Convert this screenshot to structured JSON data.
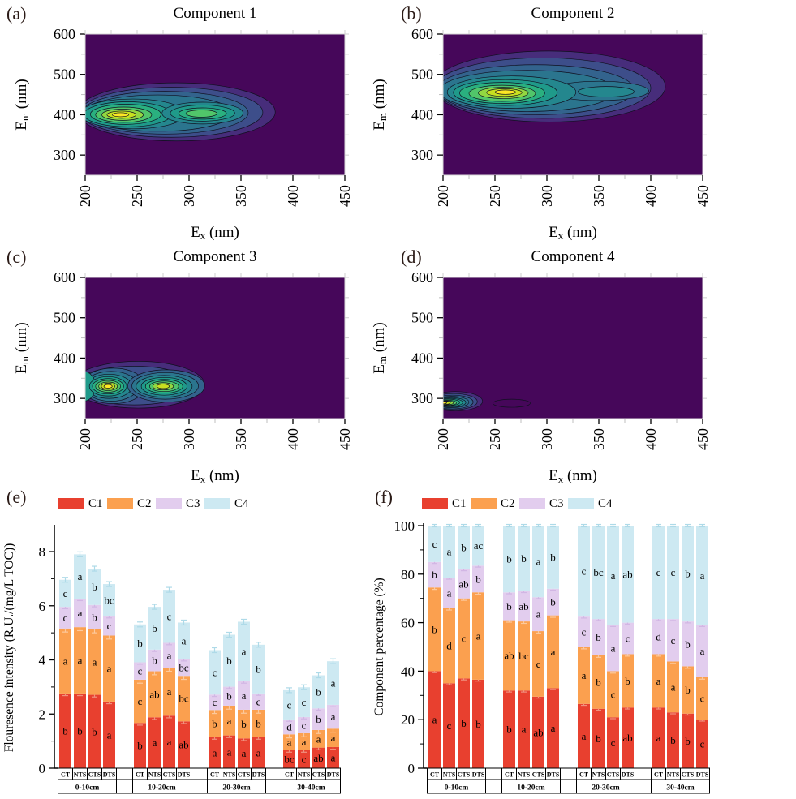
{
  "panels": {
    "a": {
      "tag": "(a)"
    },
    "b": {
      "tag": "(b)"
    },
    "c": {
      "tag": "(c)"
    },
    "d": {
      "tag": "(d)"
    },
    "e": {
      "tag": "(e)"
    },
    "f": {
      "tag": "(f)"
    }
  },
  "colors": {
    "c1": "#e8402f",
    "c2": "#fba04f",
    "c3": "#e2cdee",
    "c4": "#cde9f2",
    "panel_tag": "#2b1b17",
    "error_bars": [
      "#f0917f",
      "#fcc99c",
      "#d2b6e4",
      "#aedae8"
    ],
    "viridis": [
      "#46075a",
      "#472d7b",
      "#3d4e8a",
      "#33638d",
      "#2b758e",
      "#24878e",
      "#1f9a8a",
      "#2ab07f",
      "#51c56a",
      "#92d741",
      "#c8e020",
      "#fde725"
    ]
  },
  "chart_data": [
    {
      "type": "heatmap",
      "panel": "a",
      "title": "Component 1",
      "xlabel": [
        "E",
        "x",
        " (nm)"
      ],
      "ylabel": [
        "E",
        "m",
        " (nm)"
      ],
      "x_range": [
        200,
        450
      ],
      "y_range": [
        250,
        600
      ],
      "x_ticks": [
        200,
        250,
        300,
        350,
        400,
        450
      ],
      "y_ticks": [
        300,
        400,
        500,
        600
      ],
      "peaks": [
        {
          "ex": 235,
          "em": 400
        },
        {
          "ex": 312,
          "em": 403
        }
      ],
      "contours": [
        [
          288,
          407,
          95,
          72,
          1
        ],
        [
          283,
          406,
          88,
          62,
          2
        ],
        [
          277,
          405,
          80,
          53,
          3
        ],
        [
          270,
          404,
          72,
          45,
          4
        ],
        [
          246,
          402,
          51,
          37,
          5
        ],
        [
          241,
          401,
          42,
          31,
          6
        ],
        [
          239,
          401,
          34,
          25,
          7
        ],
        [
          237,
          400,
          27,
          19,
          8
        ],
        [
          236,
          400,
          20,
          14,
          9
        ],
        [
          235,
          400,
          14,
          9,
          10
        ],
        [
          234,
          400,
          8,
          5,
          11
        ],
        [
          313,
          404,
          39,
          27,
          5
        ],
        [
          313,
          404,
          31,
          20,
          6
        ],
        [
          313,
          403,
          23,
          14,
          7
        ],
        [
          312,
          403,
          15,
          9,
          8
        ]
      ]
    },
    {
      "type": "heatmap",
      "panel": "b",
      "title": "Component 2",
      "xlabel": [
        "E",
        "x",
        " (nm)"
      ],
      "ylabel": [
        "E",
        "m",
        " (nm)"
      ],
      "x_range": [
        200,
        450
      ],
      "y_range": [
        250,
        600
      ],
      "x_ticks": [
        200,
        250,
        300,
        350,
        400,
        450
      ],
      "y_ticks": [
        300,
        400,
        500,
        600
      ],
      "peaks": [
        {
          "ex": 258,
          "em": 455
        },
        {
          "ex": 360,
          "em": 458
        }
      ],
      "contours": [
        [
          302,
          470,
          112,
          88,
          1
        ],
        [
          296,
          466,
          104,
          75,
          2
        ],
        [
          289,
          462,
          95,
          62,
          3
        ],
        [
          281,
          459,
          85,
          51,
          4
        ],
        [
          350,
          459,
          48,
          24,
          4
        ],
        [
          266,
          456,
          62,
          40,
          5
        ],
        [
          260,
          455,
          50,
          32,
          6
        ],
        [
          257,
          454,
          41,
          26,
          7
        ],
        [
          257,
          453,
          32,
          20,
          8
        ],
        [
          258,
          454,
          24,
          14,
          9
        ],
        [
          259,
          455,
          17,
          9.5,
          10
        ],
        [
          260,
          456,
          10,
          5.5,
          11
        ],
        [
          357,
          457,
          27,
          13,
          5
        ]
      ]
    },
    {
      "type": "heatmap",
      "panel": "c",
      "title": "Component 3",
      "xlabel": [
        "E",
        "x",
        " (nm)"
      ],
      "ylabel": [
        "E",
        "m",
        " (nm)"
      ],
      "x_range": [
        200,
        450
      ],
      "y_range": [
        250,
        600
      ],
      "x_ticks": [
        200,
        250,
        300,
        350,
        400,
        450
      ],
      "y_ticks": [
        300,
        400,
        500,
        600
      ],
      "peaks": [
        {
          "ex": 222,
          "em": 330
        },
        {
          "ex": 276,
          "em": 330
        }
      ],
      "contours": [
        [
          251,
          334,
          64,
          58,
          1
        ],
        [
          247,
          332,
          57,
          48,
          2
        ],
        [
          227,
          331,
          31,
          44,
          3
        ],
        [
          225,
          330,
          26,
          37,
          4
        ],
        [
          223,
          330,
          22,
          30,
          5
        ],
        [
          198,
          330,
          12,
          37,
          6
        ],
        [
          222,
          330,
          18,
          24,
          6
        ],
        [
          222,
          330,
          15,
          19,
          7
        ],
        [
          222,
          330,
          12,
          14.5,
          8
        ],
        [
          222,
          330,
          9,
          10.5,
          9
        ],
        [
          222,
          330,
          6.5,
          7.5,
          10
        ],
        [
          222,
          330,
          4,
          4.5,
          11
        ],
        [
          278,
          331,
          37,
          40,
          3
        ],
        [
          277,
          331,
          32,
          33,
          4
        ],
        [
          276,
          330,
          27,
          27,
          5
        ],
        [
          276,
          330,
          22,
          22,
          6
        ],
        [
          276,
          330,
          18,
          17,
          7
        ],
        [
          276,
          330,
          14,
          13,
          8
        ],
        [
          275,
          330,
          10,
          9,
          9
        ],
        [
          275,
          330,
          6,
          5.5,
          10
        ]
      ]
    },
    {
      "type": "heatmap",
      "panel": "d",
      "title": "Component 4",
      "xlabel": [
        "E",
        "x",
        " (nm)"
      ],
      "ylabel": [
        "E",
        "m",
        " (nm)"
      ],
      "x_range": [
        200,
        450
      ],
      "y_range": [
        250,
        600
      ],
      "x_ticks": [
        200,
        250,
        300,
        350,
        400,
        450
      ],
      "y_ticks": [
        300,
        400,
        500,
        600
      ],
      "peaks": [
        {
          "ex": 205,
          "em": 290
        },
        {
          "ex": 265,
          "em": 288
        }
      ],
      "contours": [
        [
          212,
          293,
          26,
          24,
          1
        ],
        [
          210,
          292,
          23,
          20,
          2
        ],
        [
          209,
          291,
          20,
          17,
          3
        ],
        [
          208,
          291,
          17,
          14,
          4
        ],
        [
          207,
          290,
          15,
          12,
          5
        ],
        [
          206,
          290,
          13,
          10,
          6
        ],
        [
          205,
          290,
          11,
          8,
          7
        ],
        [
          204,
          289,
          9,
          6.5,
          8
        ],
        [
          203,
          289,
          7,
          5,
          9
        ],
        [
          202,
          289,
          5,
          4,
          10
        ],
        [
          200,
          289,
          3.5,
          2.5,
          11
        ],
        [
          266,
          288,
          18,
          10,
          0
        ]
      ]
    },
    {
      "type": "bar",
      "panel": "e",
      "stacked": true,
      "ylabel": "Flouresence intensity (R.U./(mg/L TOC))",
      "ylim": [
        0,
        8.9
      ],
      "yticks": [
        0,
        2,
        4,
        6,
        8
      ],
      "minor_ticks": [
        1,
        3,
        5,
        7
      ],
      "groups": [
        "0-10cm",
        "10-20cm",
        "20-30cm",
        "30-40cm"
      ],
      "categories": [
        "CT",
        "NTS",
        "CTS",
        "DTS"
      ],
      "legend": [
        "C1",
        "C2",
        "C3",
        "C4"
      ],
      "series": [
        {
          "name": "C1",
          "color": "#e8402f",
          "values": [
            [
              2.76,
              2.76,
              2.71,
              2.46
            ],
            [
              1.67,
              1.88,
              1.94,
              1.73
            ],
            [
              1.15,
              1.21,
              1.1,
              1.15
            ],
            [
              0.67,
              0.67,
              0.76,
              0.78
            ]
          ]
        },
        {
          "name": "C2",
          "color": "#fba04f",
          "values": [
            [
              2.4,
              2.45,
              2.42,
              2.44
            ],
            [
              1.6,
              1.7,
              1.77,
              1.68
            ],
            [
              1.0,
              1.1,
              1.06,
              1.01
            ],
            [
              0.58,
              0.62,
              0.65,
              0.68
            ]
          ]
        },
        {
          "name": "C3",
          "color": "#e2cdee",
          "values": [
            [
              0.8,
              1.05,
              0.9,
              0.72
            ],
            [
              0.64,
              0.8,
              0.92,
              0.62
            ],
            [
              0.57,
              0.7,
              1.05,
              0.6
            ],
            [
              0.55,
              0.6,
              0.8,
              0.88
            ]
          ]
        },
        {
          "name": "C4",
          "color": "#cde9f2",
          "values": [
            [
              1.0,
              1.64,
              1.34,
              1.18
            ],
            [
              1.4,
              1.58,
              1.96,
              1.35
            ],
            [
              1.64,
              1.92,
              2.2,
              1.8
            ],
            [
              1.08,
              1.1,
              1.22,
              1.61
            ]
          ]
        }
      ],
      "letters": [
        [
          [
            "b",
            "a",
            "c",
            "c"
          ],
          [
            "b",
            "a",
            "a",
            "a"
          ],
          [
            "b",
            "a",
            "b",
            "b"
          ],
          [
            "a",
            "a",
            "c",
            "bc"
          ]
        ],
        [
          [
            "b",
            "c",
            "c",
            "b"
          ],
          [
            "a",
            "ab",
            "b",
            "b"
          ],
          [
            "a",
            "a",
            "a",
            "c"
          ],
          [
            "ab",
            "bc",
            "bc",
            "a"
          ]
        ],
        [
          [
            "a",
            "b",
            "c",
            "c"
          ],
          [
            "a",
            "a",
            "b",
            "b"
          ],
          [
            "a",
            "b",
            "a",
            "a"
          ],
          [
            "a",
            "b",
            "c",
            "b"
          ]
        ],
        [
          [
            "bc",
            "a",
            "d",
            "c"
          ],
          [
            "c",
            "a",
            "c",
            "c"
          ],
          [
            "ab",
            "a",
            "b",
            "b"
          ],
          [
            "a",
            "a",
            "a",
            "a"
          ]
        ]
      ],
      "errors": [
        0.08,
        0.13,
        0.07,
        0.09
      ]
    },
    {
      "type": "bar",
      "panel": "f",
      "stacked": true,
      "ylabel": "Component percentage (%)",
      "ylim": [
        0,
        100
      ],
      "yticks": [
        0,
        20,
        40,
        60,
        80,
        100
      ],
      "minor_ticks": [
        10,
        30,
        50,
        70,
        90
      ],
      "groups": [
        "0-10cm",
        "10-20cm",
        "20-30cm",
        "30-40cm"
      ],
      "categories": [
        "CT",
        "NTS",
        "CTS",
        "DTS"
      ],
      "legend": [
        "C1",
        "C2",
        "C3",
        "C4"
      ],
      "series": [
        {
          "name": "C1",
          "color": "#e8402f",
          "values": [
            [
              40,
              35,
              37,
              36.5
            ],
            [
              32,
              32,
              29.5,
              33
            ],
            [
              26.5,
              24.5,
              21,
              25
            ],
            [
              25,
              23,
              22.5,
              20
            ]
          ]
        },
        {
          "name": "C2",
          "color": "#fba04f",
          "values": [
            [
              34.5,
              31,
              33,
              36
            ],
            [
              29,
              28.5,
              27,
              30
            ],
            [
              23.5,
              22,
              19,
              22
            ],
            [
              22,
              21,
              19.5,
              17.5
            ]
          ]
        },
        {
          "name": "C3",
          "color": "#e2cdee",
          "values": [
            [
              10.5,
              12.5,
              12,
              11
            ],
            [
              11.5,
              12.5,
              14,
              11
            ],
            [
              12.5,
              15,
              19,
              13
            ],
            [
              14.5,
              17.5,
              18.5,
              21.5
            ]
          ]
        },
        {
          "name": "C4",
          "color": "#cde9f2",
          "values": [
            [
              15,
              21.5,
              18,
              16.5
            ],
            [
              27.5,
              27,
              29.5,
              26
            ],
            [
              37.5,
              38.5,
              41,
              40
            ],
            [
              38.5,
              38.5,
              39.5,
              41
            ]
          ]
        }
      ],
      "letters": [
        [
          [
            "a",
            "b",
            "b",
            "c"
          ],
          [
            "c",
            "d",
            "a",
            "a"
          ],
          [
            "b",
            "c",
            "ab",
            "b"
          ],
          [
            "b",
            "a",
            "b",
            "ac"
          ]
        ],
        [
          [
            "b",
            "ab",
            "b",
            "b"
          ],
          [
            "a",
            "bc",
            "ab",
            "b"
          ],
          [
            "ab",
            "c",
            "a",
            "a"
          ],
          [
            "a",
            "a",
            "b",
            "b"
          ]
        ],
        [
          [
            "a",
            "a",
            "c",
            "c"
          ],
          [
            "b",
            "b",
            "b",
            "bc"
          ],
          [
            "c",
            "c",
            "a",
            "a"
          ],
          [
            "ab",
            "b",
            "c",
            "ab"
          ]
        ],
        [
          [
            "a",
            "a",
            "d",
            "c"
          ],
          [
            "b",
            "a",
            "c",
            "c"
          ],
          [
            "b",
            "b",
            "b",
            "b"
          ],
          [
            "c",
            "c",
            "a",
            "a"
          ]
        ]
      ],
      "errors": [
        0.6,
        0.8,
        0.6,
        0.5
      ]
    }
  ]
}
